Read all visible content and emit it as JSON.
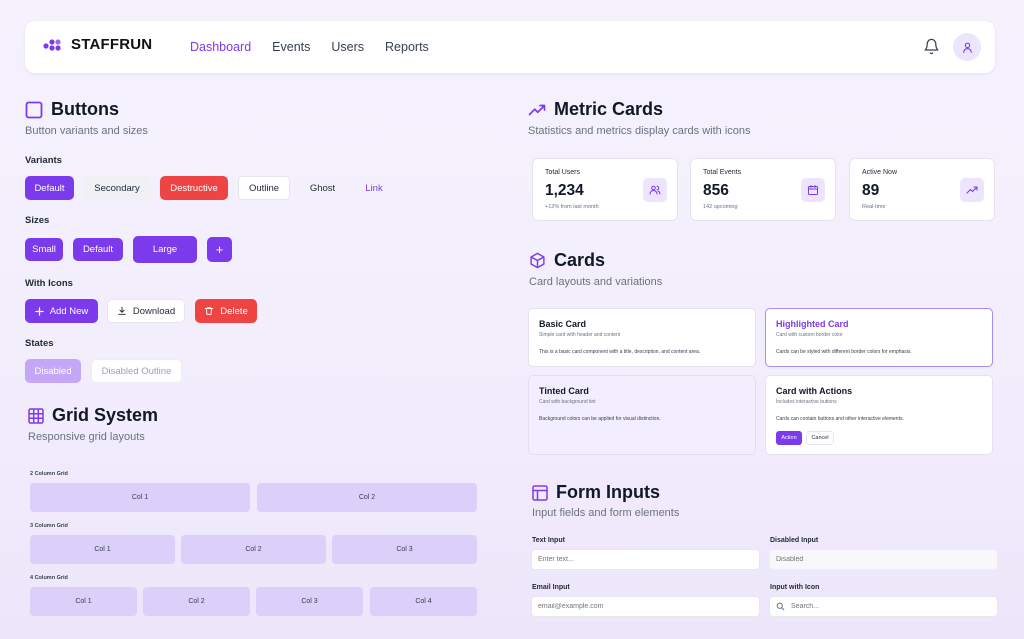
{
  "nav": {
    "brand": "STAFFRUN",
    "links": [
      "Dashboard",
      "Events",
      "Users",
      "Reports"
    ],
    "active": "Dashboard"
  },
  "buttons": {
    "title": "Buttons",
    "subtitle": "Button variants and sizes",
    "variants_label": "Variants",
    "variants": [
      "Default",
      "Secondary",
      "Destructive",
      "Outline",
      "Ghost",
      "Link"
    ],
    "sizes_label": "Sizes",
    "sizes": [
      "Small",
      "Default",
      "Large",
      "+"
    ],
    "icons_label": "With Icons",
    "icons": [
      "Add New",
      "Download",
      "Delete"
    ],
    "states_label": "States",
    "states": [
      "Disabled",
      "Disabled Outline"
    ]
  },
  "grid": {
    "title": "Grid System",
    "subtitle": "Responsive grid layouts",
    "two_label": "2 Column Grid",
    "two": [
      "Col 1",
      "Col 2"
    ],
    "three_label": "3 Column Grid",
    "three": [
      "Col 1",
      "Col 2",
      "Col 3"
    ],
    "four_label": "4 Column Grid",
    "four": [
      "Col 1",
      "Col 2",
      "Col 3",
      "Col 4"
    ]
  },
  "metrics": {
    "title": "Metric Cards",
    "subtitle": "Statistics and metrics display cards with icons",
    "cards": [
      {
        "title": "Total Users",
        "value": "1,234",
        "sub": "+12% from last month",
        "icon": "users-icon"
      },
      {
        "title": "Total Events",
        "value": "856",
        "sub": "142 upcoming",
        "icon": "calendar-icon"
      },
      {
        "title": "Active Now",
        "value": "89",
        "sub": "Real-time",
        "icon": "trend-up-icon"
      }
    ]
  },
  "cards": {
    "title": "Cards",
    "subtitle": "Card layouts and variations",
    "items": [
      {
        "title": "Basic Card",
        "desc": "Simple card with header and content",
        "content": "This is a basic card component with a title, description, and content area."
      },
      {
        "title": "Highlighted Card",
        "desc": "Card with custom border color",
        "content": "Cards can be styled with different border colors for emphasis."
      },
      {
        "title": "Tinted Card",
        "desc": "Card with background tint",
        "content": "Background colors can be applied for visual distinction."
      },
      {
        "title": "Card with Actions",
        "desc": "Includes interactive buttons",
        "content": "Cards can contain buttons and other interactive elements.",
        "actions": [
          "Action",
          "Cancel"
        ]
      }
    ]
  },
  "forms": {
    "title": "Form Inputs",
    "subtitle": "Input fields and form elements",
    "text_label": "Text Input",
    "text_placeholder": "Enter text...",
    "disabled_label": "Disabled Input",
    "disabled_placeholder": "Disabled",
    "email_label": "Email Input",
    "email_placeholder": "email@example.com",
    "icon_label": "Input with Icon",
    "icon_placeholder": "Search..."
  },
  "colors": {
    "primary": "#7c3aed",
    "destructive": "#ef4444",
    "tint": "#ede4fd"
  }
}
